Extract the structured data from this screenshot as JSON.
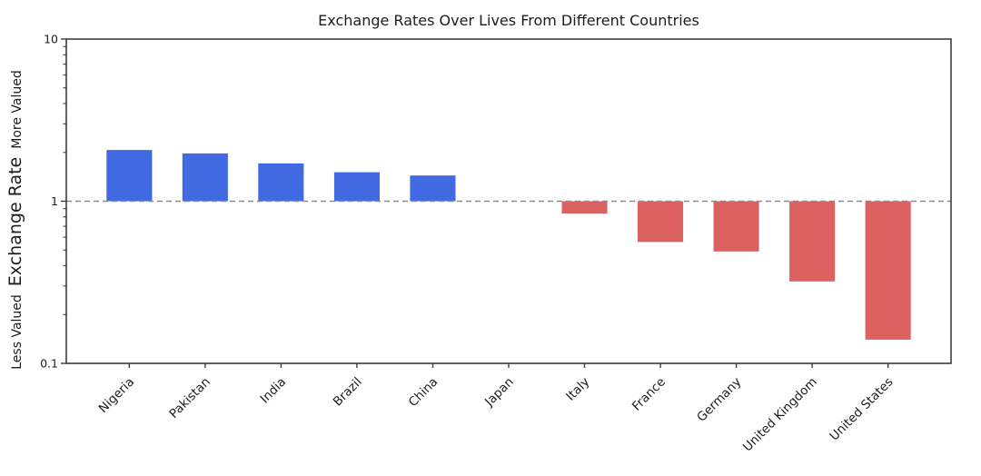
{
  "chart_data": {
    "type": "bar",
    "title": "Exchange Rates Over Lives From Different Countries",
    "categories": [
      "Nigeria",
      "Pakistan",
      "India",
      "Brazil",
      "China",
      "Japan",
      "Italy",
      "France",
      "Germany",
      "United Kingdom",
      "United States"
    ],
    "values": [
      2.07,
      1.97,
      1.71,
      1.51,
      1.44,
      1.0,
      0.84,
      0.56,
      0.49,
      0.32,
      0.14
    ],
    "ylabel": "Exchange Rate",
    "ylabel_top": "More Valued",
    "ylabel_bottom": "Less Valued",
    "yscale": "log",
    "ylim": [
      0.1,
      10
    ],
    "yticks": [
      {
        "value": 10,
        "label": "10"
      },
      {
        "value": 1,
        "label": "1"
      },
      {
        "value": 0.1,
        "label": "0.1"
      }
    ],
    "x_tick_rotation": 45,
    "grid": false,
    "legend": null,
    "reference_line": {
      "y": 1,
      "style": "dashed",
      "color": "#8a8a8a"
    },
    "colors": {
      "above_parity": "#4169e1",
      "below_parity": "#db6260",
      "axis": "#3c3c3c",
      "text": "#1c1c1c"
    }
  }
}
